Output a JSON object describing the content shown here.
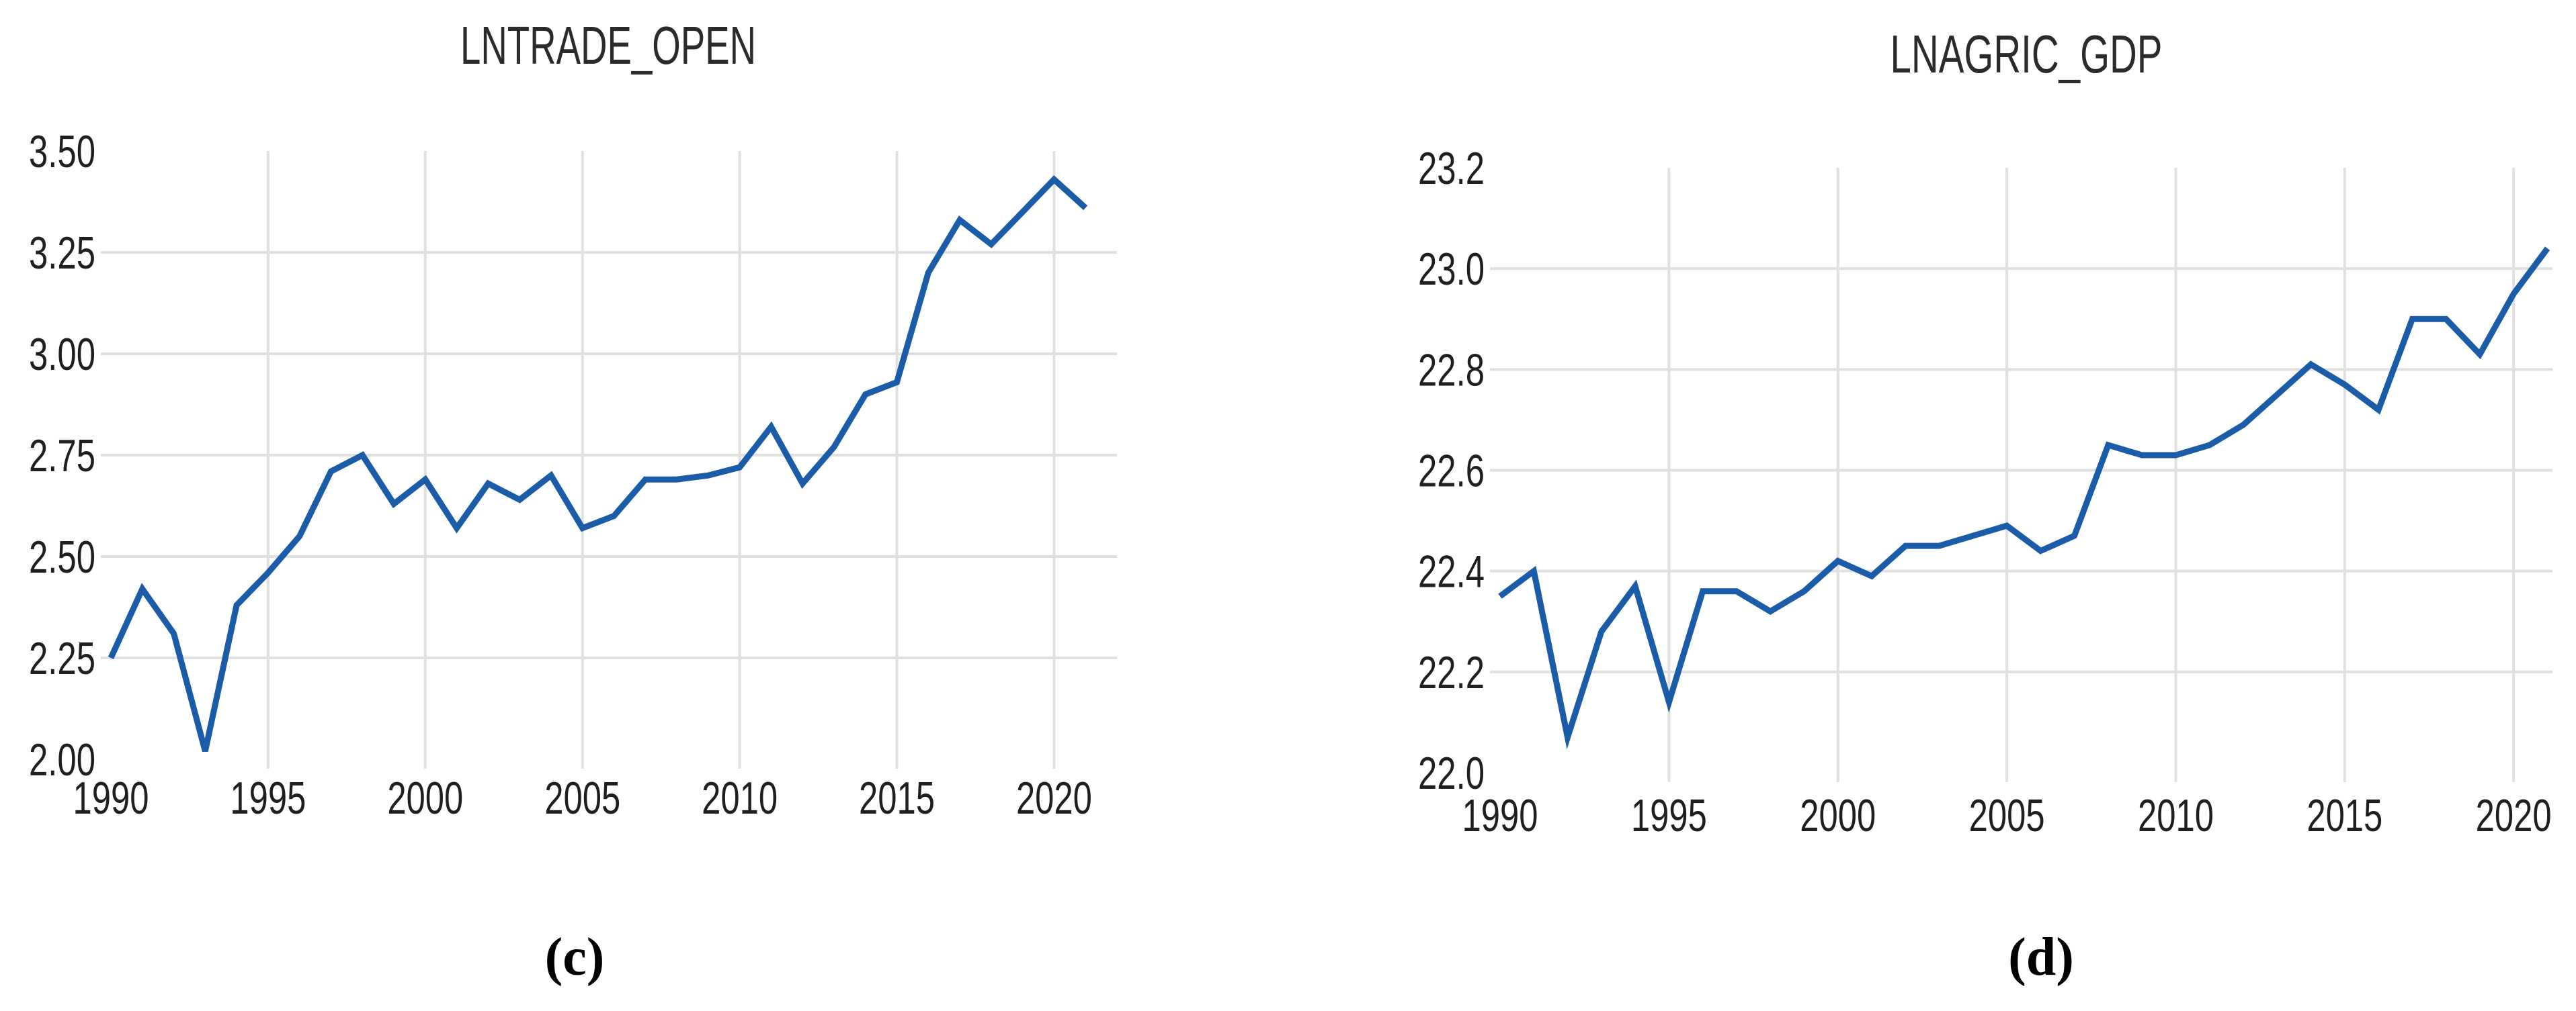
{
  "figure": {
    "background": "#ffffff",
    "text_color": "#1f1f1f",
    "grid_color": "#e0e0e0",
    "line_color": "#1a5ca8"
  },
  "chart_data": [
    {
      "type": "line",
      "title": "LNTRADE_OPEN",
      "caption": "(c)",
      "xlabel": "",
      "ylabel": "",
      "x": [
        1990,
        1991,
        1992,
        1993,
        1994,
        1995,
        1996,
        1997,
        1998,
        1999,
        2000,
        2001,
        2002,
        2003,
        2004,
        2005,
        2006,
        2007,
        2008,
        2009,
        2010,
        2011,
        2012,
        2013,
        2014,
        2015,
        2016,
        2017,
        2018,
        2019,
        2020,
        2021
      ],
      "values": [
        2.25,
        2.42,
        2.31,
        2.02,
        2.38,
        2.46,
        2.55,
        2.71,
        2.75,
        2.63,
        2.69,
        2.57,
        2.68,
        2.64,
        2.7,
        2.57,
        2.6,
        2.69,
        2.69,
        2.7,
        2.72,
        2.82,
        2.68,
        2.77,
        2.9,
        2.93,
        3.2,
        3.33,
        3.27,
        3.35,
        3.43,
        3.36
      ],
      "xlim": [
        1990,
        2022
      ],
      "ylim": [
        2.0,
        3.5
      ],
      "yticks": [
        2.0,
        2.25,
        2.5,
        2.75,
        3.0,
        3.25,
        3.5
      ],
      "ytick_labels": [
        "2.00",
        "2.25",
        "2.50",
        "2.75",
        "3.00",
        "3.25",
        "3.50"
      ],
      "xticks": [
        1990,
        1995,
        2000,
        2005,
        2010,
        2015,
        2020
      ],
      "xtick_labels": [
        "1990",
        "1995",
        "2000",
        "2005",
        "2010",
        "2015",
        "2020"
      ],
      "grid": true,
      "legend": false,
      "line_color": "#1a5ca8",
      "grid_color": "#e0e0e0"
    },
    {
      "type": "line",
      "title": "LNAGRIC_GDP",
      "caption": "(d)",
      "xlabel": "",
      "ylabel": "",
      "x": [
        1990,
        1991,
        1992,
        1993,
        1994,
        1995,
        1996,
        1997,
        1998,
        1999,
        2000,
        2001,
        2002,
        2003,
        2004,
        2005,
        2006,
        2007,
        2008,
        2009,
        2010,
        2011,
        2012,
        2013,
        2014,
        2015,
        2016,
        2017,
        2018,
        2019,
        2020,
        2021
      ],
      "values": [
        22.35,
        22.4,
        22.07,
        22.28,
        22.37,
        22.14,
        22.36,
        22.36,
        22.32,
        22.36,
        22.42,
        22.39,
        22.45,
        22.45,
        22.47,
        22.49,
        22.44,
        22.47,
        22.65,
        22.63,
        22.63,
        22.65,
        22.69,
        22.75,
        22.81,
        22.77,
        22.72,
        22.9,
        22.9,
        22.83,
        22.95,
        23.04
      ],
      "xlim": [
        1990,
        2021.15
      ],
      "ylim": [
        22.0,
        23.2
      ],
      "yticks": [
        22.0,
        22.2,
        22.4,
        22.6,
        22.8,
        23.0,
        23.2
      ],
      "ytick_labels": [
        "22.0",
        "22.2",
        "22.4",
        "22.6",
        "22.8",
        "23.0",
        "23.2"
      ],
      "xticks": [
        1990,
        1995,
        2000,
        2005,
        2010,
        2015,
        2020
      ],
      "xtick_labels": [
        "1990",
        "1995",
        "2000",
        "2005",
        "2010",
        "2015",
        "2020"
      ],
      "grid": true,
      "legend": false,
      "line_color": "#1a5ca8",
      "grid_color": "#e0e0e0"
    }
  ]
}
